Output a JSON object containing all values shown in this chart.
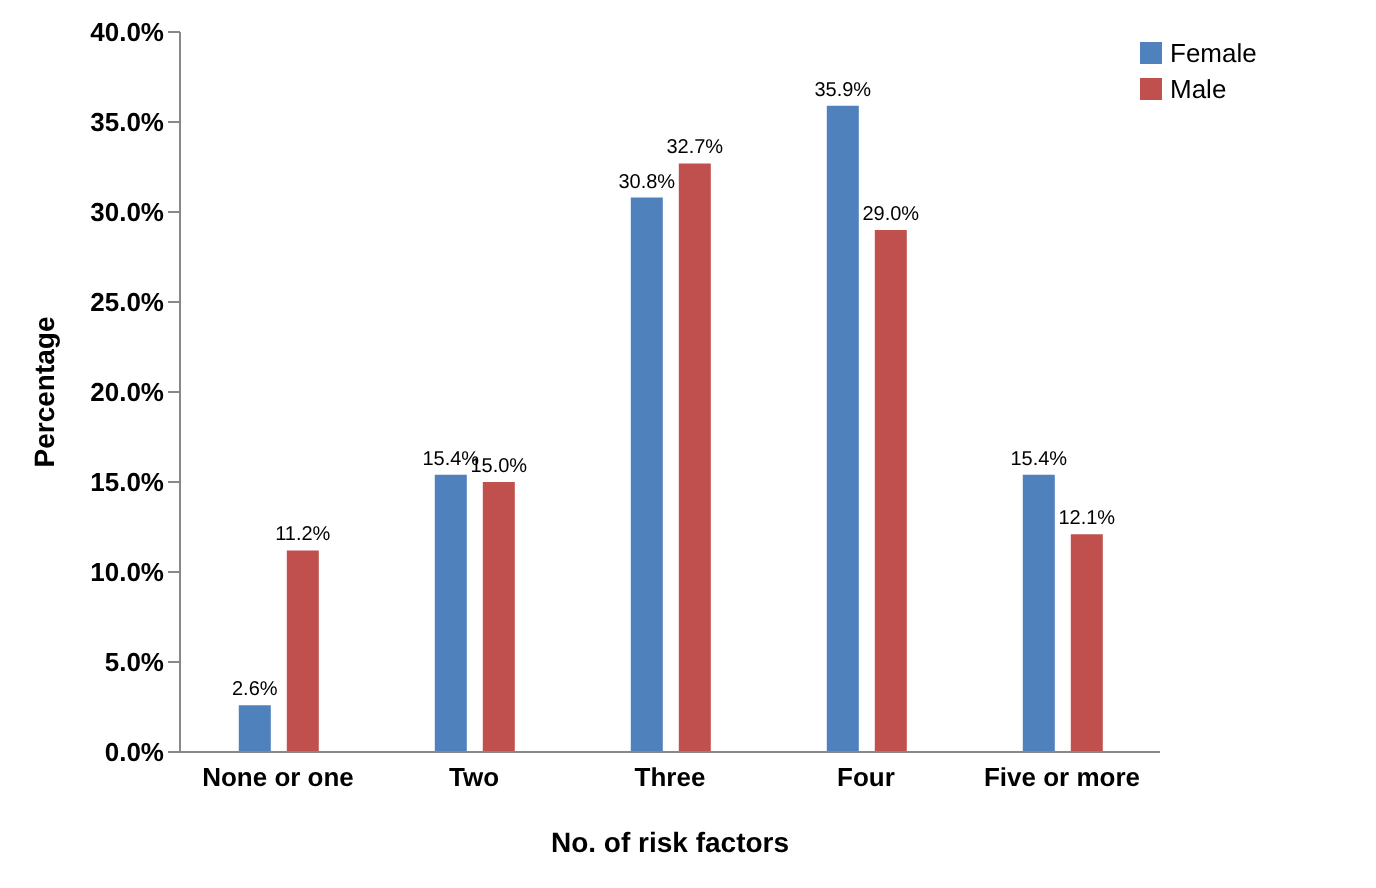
{
  "chart_data": {
    "type": "bar",
    "xlabel": "No. of risk factors",
    "ylabel": "Percentage",
    "categories": [
      "None or one",
      "Two",
      "Three",
      "Four",
      "Five or more"
    ],
    "series": [
      {
        "name": "Female",
        "color": "#4f81bd",
        "values": [
          2.6,
          15.4,
          30.8,
          35.9,
          15.4
        ],
        "value_labels": [
          "2.6%",
          "15.4%",
          "30.8%",
          "35.9%",
          "15.4%"
        ]
      },
      {
        "name": "Male",
        "color": "#c0504d",
        "values": [
          11.2,
          15.0,
          32.7,
          29.0,
          12.1
        ],
        "value_labels": [
          "11.2%",
          "15.0%",
          "32.7%",
          "29.0%",
          "12.1%"
        ]
      }
    ],
    "ylim": [
      0,
      40
    ],
    "yticks": [
      {
        "value": 0,
        "label": "0.0%"
      },
      {
        "value": 5,
        "label": "5.0%"
      },
      {
        "value": 10,
        "label": "10.0%"
      },
      {
        "value": 15,
        "label": "15.0%"
      },
      {
        "value": 20,
        "label": "20.0%"
      },
      {
        "value": 25,
        "label": "25.0%"
      },
      {
        "value": 30,
        "label": "30.0%"
      },
      {
        "value": 35,
        "label": "35.0%"
      },
      {
        "value": 40,
        "label": "40.0%"
      }
    ],
    "grid": false,
    "legend": "top right"
  }
}
